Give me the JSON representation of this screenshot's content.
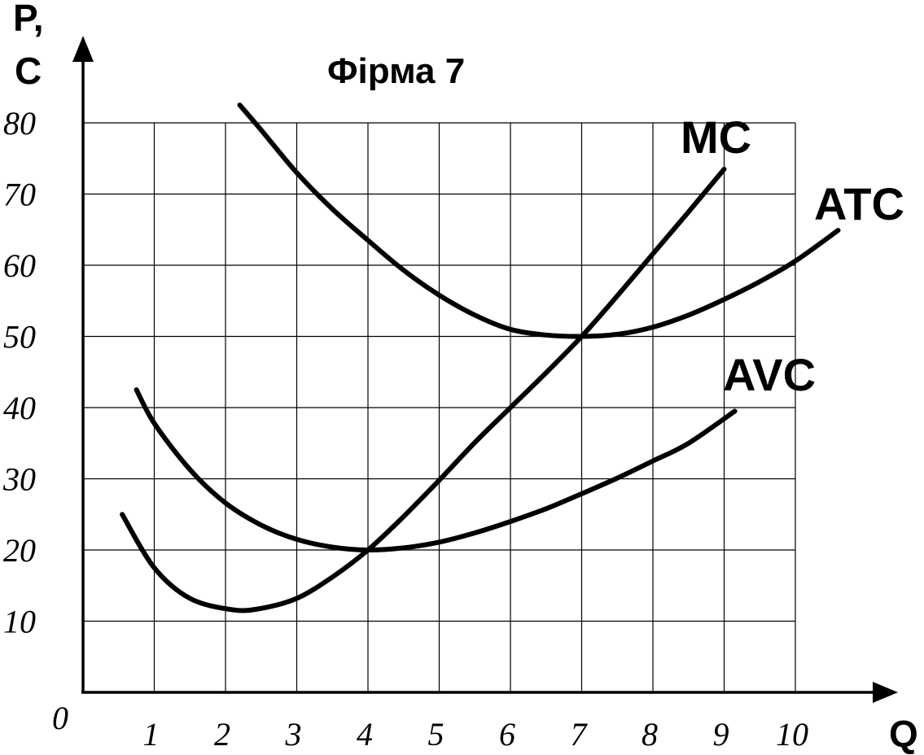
{
  "chart_data": {
    "type": "line",
    "title": "Фірма 7",
    "ylabel_line1": "P,",
    "ylabel_line2": "C",
    "xlabel": "Q",
    "origin_label": "0",
    "xlim": [
      0,
      10
    ],
    "ylim": [
      0,
      80
    ],
    "x_ticks": [
      "1",
      "2",
      "3",
      "4",
      "5",
      "6",
      "7",
      "8",
      "9",
      "10"
    ],
    "y_ticks": [
      "10",
      "20",
      "30",
      "40",
      "50",
      "60",
      "70",
      "80"
    ],
    "grid": true,
    "series": [
      {
        "name": "MC",
        "x": [
          0.55,
          1.0,
          1.5,
          2.1,
          2.5,
          3.0,
          3.5,
          4.0,
          4.5,
          5.0,
          5.5,
          6.0,
          6.5,
          7.0,
          7.5,
          8.0,
          8.5,
          9.0
        ],
        "y": [
          25,
          17.5,
          13.2,
          11.6,
          11.8,
          13.2,
          16.2,
          20.0,
          24.7,
          29.8,
          35.1,
          40.0,
          44.9,
          50.0,
          55.7,
          61.6,
          67.5,
          73.5
        ]
      },
      {
        "name": "ATC",
        "x": [
          2.2,
          2.5,
          3.0,
          3.5,
          4.0,
          4.5,
          5.0,
          5.5,
          6.0,
          6.5,
          7.0,
          7.5,
          8.0,
          8.5,
          9.0,
          9.5,
          10.0,
          10.6
        ],
        "y": [
          82.5,
          79.0,
          73.0,
          67.9,
          63.5,
          59.3,
          55.8,
          53.0,
          51.0,
          50.2,
          50.0,
          50.3,
          51.3,
          53.0,
          55.2,
          57.7,
          60.6,
          64.9
        ]
      },
      {
        "name": "AVC",
        "x": [
          0.75,
          1.0,
          1.5,
          2.0,
          2.5,
          3.0,
          3.5,
          4.0,
          4.5,
          5.0,
          5.5,
          6.0,
          6.5,
          7.0,
          7.5,
          8.0,
          8.5,
          9.15
        ],
        "y": [
          42.5,
          37.8,
          31.3,
          26.6,
          23.5,
          21.5,
          20.4,
          20.0,
          20.3,
          21.1,
          22.4,
          24.0,
          25.8,
          27.9,
          30.1,
          32.5,
          35.0,
          39.5
        ]
      }
    ]
  }
}
